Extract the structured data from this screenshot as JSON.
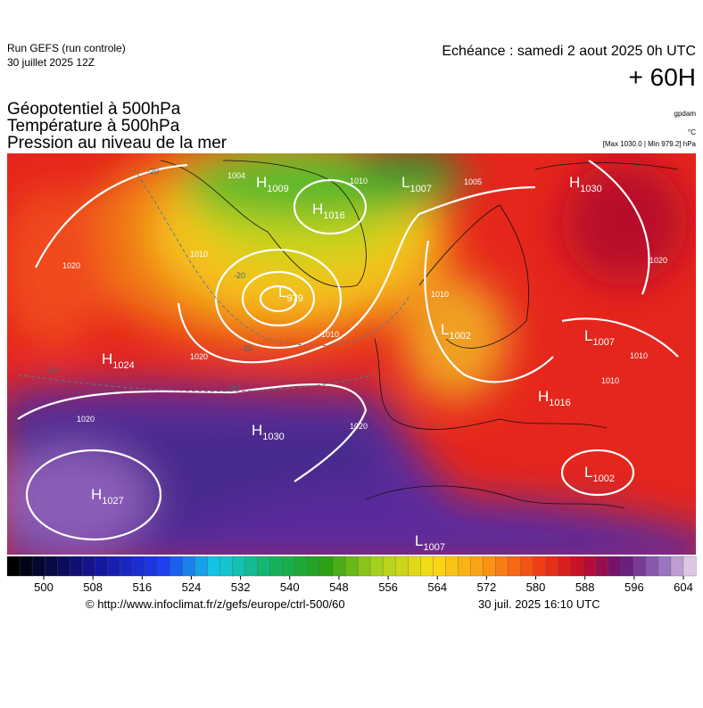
{
  "header": {
    "run": "Run GEFS (run controle)",
    "run_date": "30 juillet 2025 12Z",
    "echeance": "Echéance : samedi 2 aout 2025 0h UTC",
    "step": "+ 60H",
    "fields": [
      "Géopotentiel à 500hPa",
      "Température à 500hPa",
      "Pression au niveau de la mer"
    ],
    "unit_geo": "gpdam",
    "unit_temp": "°C",
    "pressure_range": "[Max 1030.0 | Min 979.2] hPa"
  },
  "map": {
    "centers": [
      {
        "kind": "H",
        "value": 1009
      },
      {
        "kind": "H",
        "value": 1016
      },
      {
        "kind": "L",
        "value": 1007
      },
      {
        "kind": "H",
        "value": 1030
      },
      {
        "kind": "L",
        "value": 979
      },
      {
        "kind": "L",
        "value": 1002
      },
      {
        "kind": "L",
        "value": 1007
      },
      {
        "kind": "H",
        "value": 1024
      },
      {
        "kind": "H",
        "value": 1016
      },
      {
        "kind": "H",
        "value": 1030
      },
      {
        "kind": "H",
        "value": 1027
      },
      {
        "kind": "L",
        "value": 1002
      },
      {
        "kind": "L",
        "value": 1007
      }
    ],
    "isobar_labels": [
      1004,
      1010,
      1005,
      1020,
      1010,
      1020,
      1010,
      1010,
      1020,
      1010,
      1010,
      1020,
      1020
    ],
    "temp_labels": [
      -20,
      -20,
      -20,
      -10,
      -10
    ]
  },
  "colorbar": {
    "ticks": [
      500,
      508,
      516,
      524,
      532,
      540,
      548,
      556,
      564,
      572,
      580,
      588,
      596,
      604
    ]
  },
  "footer": {
    "url": "© http://www.infoclimat.fr/z/gefs/europe/ctrl-500/60",
    "generated": "30 juil. 2025 16:10 UTC"
  }
}
